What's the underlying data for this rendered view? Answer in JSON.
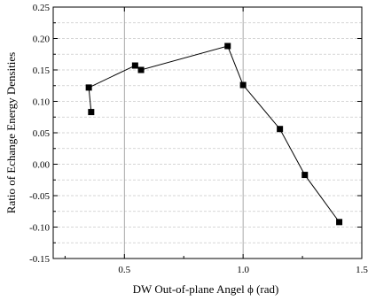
{
  "chart_data": {
    "type": "line",
    "title": "",
    "xlabel": "DW Out-of-plane Angel ϕ (rad)",
    "ylabel": "Ratio of Echange Energy Densities",
    "xlim": [
      0.2,
      1.5
    ],
    "ylim": [
      -0.15,
      0.25
    ],
    "x_ticks": [
      0.5,
      1.0,
      1.5
    ],
    "x_tick_labels": [
      "0.5",
      "1.0",
      "1.5"
    ],
    "y_ticks": [
      -0.15,
      -0.1,
      -0.05,
      0.0,
      0.05,
      0.1,
      0.15,
      0.2,
      0.25
    ],
    "y_tick_labels": [
      "-0.15",
      "-0.10",
      "-0.05",
      "0.00",
      "0.05",
      "0.10",
      "0.15",
      "0.20",
      "0.25"
    ],
    "grid": true,
    "marker": "square",
    "line_color": "#000000",
    "series": [
      {
        "x": [
          0.36,
          0.35,
          0.545,
          0.57,
          0.935,
          1.0,
          1.155,
          1.26,
          1.405
        ],
        "y": [
          0.083,
          0.122,
          0.157,
          0.15,
          0.188,
          0.126,
          0.056,
          -0.017,
          -0.092
        ]
      }
    ]
  }
}
